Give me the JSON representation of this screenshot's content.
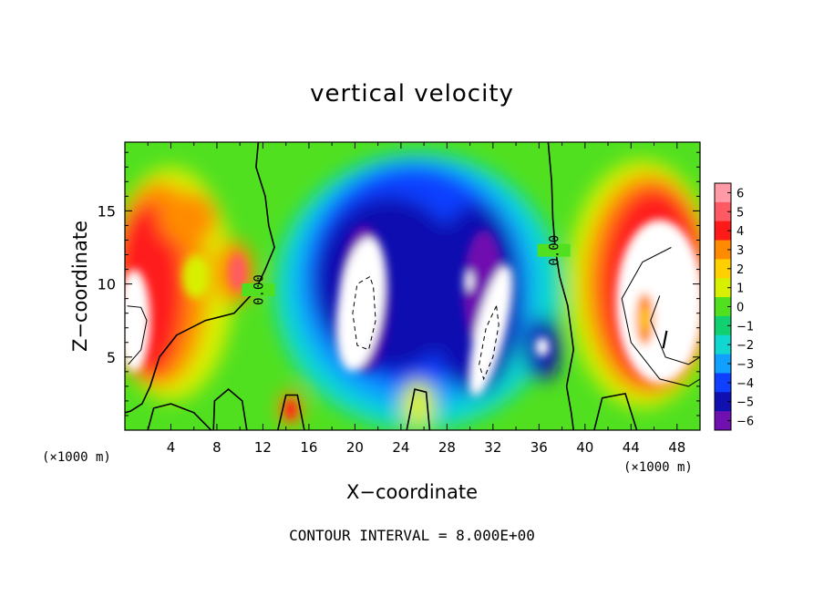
{
  "chart_data": {
    "type": "heatmap",
    "title": "vertical velocity",
    "xlabel": "X−coordinate",
    "ylabel": "Z−coordinate",
    "x_unit_label": "(×1000 m)",
    "x_tick_labels": [
      "4",
      "8",
      "12",
      "16",
      "20",
      "24",
      "28",
      "32",
      "36",
      "40",
      "44",
      "48"
    ],
    "x_ticks": [
      4,
      8,
      12,
      16,
      20,
      24,
      28,
      32,
      36,
      40,
      44,
      48
    ],
    "y_tick_labels": [
      "5",
      "10",
      "15"
    ],
    "y_ticks": [
      5,
      10,
      15
    ],
    "xlim": [
      0,
      50
    ],
    "ylim": [
      0,
      19.7
    ],
    "colorbar": {
      "levels": [
        6,
        5,
        4,
        3,
        2,
        1,
        0,
        -1,
        -2,
        -3,
        -4,
        -5,
        -6
      ],
      "labels": [
        "6",
        "5",
        "4",
        "3",
        "2",
        "1",
        "0",
        "−1",
        "−2",
        "−3",
        "−4",
        "−5",
        "−6"
      ],
      "colors": [
        "#ff9aa6",
        "#ff5a64",
        "#ff1a1a",
        "#ff8c00",
        "#ffd000",
        "#d8f000",
        "#50e020",
        "#10d070",
        "#10d8d0",
        "#10a0ff",
        "#1040ff",
        "#1010b0",
        "#7010b0"
      ]
    },
    "contour_labels": [
      {
        "text": "0.00",
        "x": 11.6,
        "z": 9.6
      },
      {
        "text": "0.00",
        "x": 37.3,
        "z": 12.3
      }
    ],
    "contour_interval_text": "CONTOUR INTERVAL = 8.000E+00",
    "regions": [
      {
        "kind": "background",
        "value": 0
      },
      {
        "kind": "updraft",
        "center_x": 3.5,
        "center_z": 11,
        "peak": 4
      },
      {
        "kind": "updraft",
        "center_x": 9.5,
        "center_z": 11,
        "peak": 4
      },
      {
        "kind": "updraft",
        "center_x": 5.5,
        "center_z": 14,
        "peak": 3
      },
      {
        "kind": "downdraft",
        "center_x": 25,
        "center_z": 9,
        "peak": -5
      },
      {
        "kind": "downdraft",
        "center_x": 36.3,
        "center_z": 5.5,
        "peak": -5
      },
      {
        "kind": "updraft",
        "center_x": 45,
        "center_z": 9,
        "peak": 6
      },
      {
        "kind": "updraft",
        "center_x": 14,
        "center_z": 1.5,
        "peak": 4
      }
    ]
  }
}
